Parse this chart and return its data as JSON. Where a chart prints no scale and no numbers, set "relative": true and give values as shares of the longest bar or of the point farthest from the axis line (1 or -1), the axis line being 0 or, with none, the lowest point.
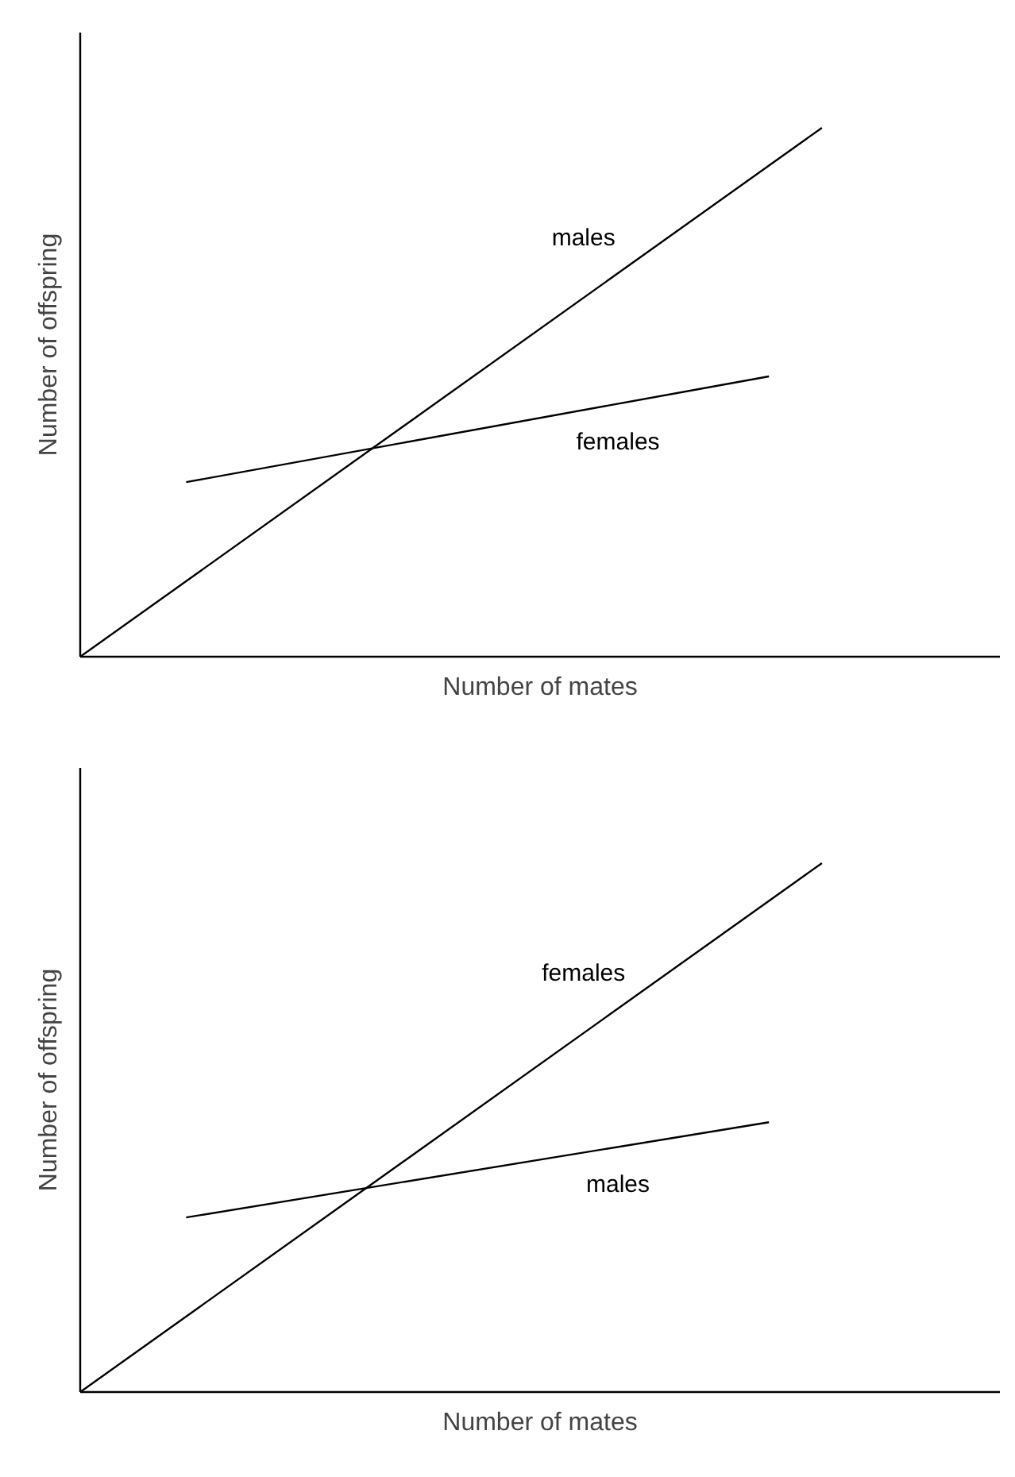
{
  "chart_data": [
    {
      "type": "line",
      "relative": true,
      "xlabel": "Number of mates",
      "ylabel": "Number of offspring",
      "categories": [
        null,
        null,
        null,
        null,
        null,
        null,
        null,
        null,
        null,
        null,
        null,
        null,
        null,
        null,
        null
      ],
      "series": [
        {
          "name": "males",
          "color": "#000000",
          "values": [
            0,
            null,
            null,
            null,
            null,
            null,
            null,
            null,
            null,
            null,
            null,
            null,
            null,
            null,
            1
          ]
        },
        {
          "name": "females",
          "color": "#000000",
          "values": [
            null,
            null,
            0.33,
            null,
            null,
            null,
            null,
            null,
            null,
            null,
            null,
            null,
            null,
            0.53,
            null
          ]
        }
      ]
    },
    {
      "type": "line",
      "relative": true,
      "xlabel": "Number of mates",
      "ylabel": "Number of offspring",
      "categories": [
        null,
        null,
        null,
        null,
        null,
        null,
        null,
        null,
        null,
        null,
        null,
        null,
        null,
        null,
        null
      ],
      "series": [
        {
          "name": "females",
          "color": "#000000",
          "values": [
            0,
            null,
            null,
            null,
            null,
            null,
            null,
            null,
            null,
            null,
            null,
            null,
            null,
            null,
            1
          ]
        },
        {
          "name": "males",
          "color": "#000000",
          "values": [
            null,
            null,
            0.33,
            null,
            null,
            null,
            null,
            null,
            null,
            null,
            null,
            null,
            null,
            0.51,
            null
          ]
        }
      ]
    }
  ]
}
